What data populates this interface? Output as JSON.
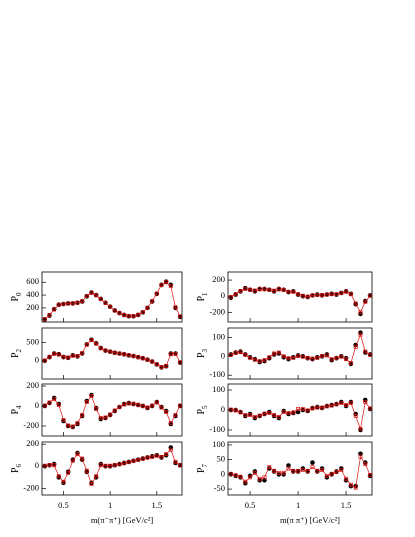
{
  "chart_data": [
    {
      "type": "scatter",
      "ylabel": "P",
      "ylabel_sub": "0",
      "x": [
        0.3,
        0.35,
        0.4,
        0.45,
        0.5,
        0.55,
        0.6,
        0.65,
        0.7,
        0.75,
        0.8,
        0.85,
        0.9,
        0.95,
        1.0,
        1.05,
        1.1,
        1.15,
        1.2,
        1.25,
        1.3,
        1.35,
        1.4,
        1.45,
        1.5,
        1.55,
        1.6,
        1.65,
        1.7,
        1.75
      ],
      "xlim": [
        0.27,
        1.77
      ],
      "xticks": [
        0.5,
        1,
        1.5
      ],
      "ylim": [
        -20,
        760
      ],
      "yticks": [
        200,
        400,
        600
      ],
      "series": [
        {
          "marker": "circle",
          "color": "#000000",
          "values": [
            20,
            80,
            180,
            250,
            260,
            270,
            270,
            280,
            300,
            380,
            440,
            400,
            340,
            280,
            220,
            160,
            120,
            90,
            70,
            70,
            90,
            130,
            200,
            300,
            420,
            560,
            610,
            560,
            200,
            60
          ]
        },
        {
          "marker": "square",
          "color": "#dd1111",
          "values": [
            25,
            90,
            175,
            245,
            262,
            268,
            272,
            282,
            305,
            385,
            435,
            398,
            338,
            278,
            218,
            158,
            118,
            88,
            72,
            72,
            92,
            132,
            202,
            305,
            425,
            555,
            600,
            540,
            210,
            70
          ]
        }
      ]
    },
    {
      "type": "scatter",
      "ylabel": "P",
      "ylabel_sub": "1",
      "x": [
        0.3,
        0.35,
        0.4,
        0.45,
        0.5,
        0.55,
        0.6,
        0.65,
        0.7,
        0.75,
        0.8,
        0.85,
        0.9,
        0.95,
        1.0,
        1.05,
        1.1,
        1.15,
        1.2,
        1.25,
        1.3,
        1.35,
        1.4,
        1.45,
        1.5,
        1.55,
        1.6,
        1.65,
        1.7,
        1.75
      ],
      "xlim": [
        0.27,
        1.77
      ],
      "xticks": [
        0.5,
        1,
        1.5
      ],
      "ylim": [
        -320,
        300
      ],
      "yticks": [
        -200,
        0,
        200
      ],
      "series": [
        {
          "marker": "circle",
          "color": "#000000",
          "values": [
            -20,
            20,
            60,
            100,
            80,
            60,
            90,
            90,
            80,
            60,
            90,
            80,
            50,
            60,
            20,
            0,
            -10,
            10,
            20,
            10,
            20,
            30,
            20,
            40,
            60,
            30,
            -100,
            -220,
            -60,
            10
          ]
        },
        {
          "marker": "square",
          "color": "#dd1111",
          "values": [
            -10,
            25,
            65,
            90,
            80,
            70,
            85,
            85,
            78,
            68,
            85,
            78,
            55,
            55,
            25,
            5,
            -5,
            10,
            15,
            15,
            20,
            25,
            25,
            40,
            55,
            25,
            -90,
            -200,
            -70,
            5
          ]
        }
      ]
    },
    {
      "type": "scatter",
      "ylabel": "P",
      "ylabel_sub": "2",
      "x": [
        0.3,
        0.35,
        0.4,
        0.45,
        0.5,
        0.55,
        0.6,
        0.65,
        0.7,
        0.75,
        0.8,
        0.85,
        0.9,
        0.95,
        1.0,
        1.05,
        1.1,
        1.15,
        1.2,
        1.25,
        1.3,
        1.35,
        1.4,
        1.45,
        1.5,
        1.55,
        1.6,
        1.65,
        1.7,
        1.75
      ],
      "xlim": [
        0.27,
        1.77
      ],
      "xticks": [
        0.5,
        1,
        1.5
      ],
      "ylim": [
        -500,
        900
      ],
      "yticks": [
        0,
        500
      ],
      "series": [
        {
          "marker": "circle",
          "color": "#000000",
          "values": [
            0,
            100,
            200,
            180,
            100,
            80,
            150,
            120,
            200,
            450,
            580,
            480,
            350,
            280,
            250,
            220,
            200,
            180,
            150,
            130,
            100,
            70,
            30,
            -20,
            -100,
            -180,
            -150,
            200,
            200,
            -50
          ]
        },
        {
          "marker": "square",
          "color": "#dd1111",
          "values": [
            10,
            110,
            190,
            170,
            110,
            90,
            140,
            130,
            210,
            440,
            570,
            470,
            345,
            285,
            250,
            220,
            198,
            178,
            152,
            128,
            98,
            68,
            28,
            -25,
            -95,
            -170,
            -140,
            180,
            190,
            -40
          ]
        }
      ]
    },
    {
      "type": "scatter",
      "ylabel": "P",
      "ylabel_sub": "3",
      "x": [
        0.3,
        0.35,
        0.4,
        0.45,
        0.5,
        0.55,
        0.6,
        0.65,
        0.7,
        0.75,
        0.8,
        0.85,
        0.9,
        0.95,
        1.0,
        1.05,
        1.1,
        1.15,
        1.2,
        1.25,
        1.3,
        1.35,
        1.4,
        1.45,
        1.5,
        1.55,
        1.6,
        1.65,
        1.7,
        1.75
      ],
      "xlim": [
        0.27,
        1.77
      ],
      "xticks": [
        0.5,
        1,
        1.5
      ],
      "ylim": [
        -120,
        150
      ],
      "yticks": [
        -100,
        0,
        100
      ],
      "series": [
        {
          "marker": "circle",
          "color": "#000000",
          "values": [
            10,
            20,
            25,
            10,
            -5,
            -15,
            -30,
            -25,
            -10,
            10,
            15,
            -5,
            -15,
            -5,
            5,
            0,
            -10,
            -15,
            -5,
            0,
            10,
            -20,
            -10,
            0,
            -10,
            -40,
            60,
            125,
            20,
            10
          ]
        },
        {
          "marker": "square",
          "color": "#dd1111",
          "values": [
            8,
            18,
            22,
            8,
            -8,
            -18,
            -25,
            -20,
            -5,
            15,
            20,
            0,
            -10,
            -8,
            2,
            -2,
            -8,
            -12,
            -8,
            2,
            5,
            -15,
            -8,
            -2,
            -15,
            -35,
            50,
            115,
            25,
            8
          ]
        }
      ]
    },
    {
      "type": "scatter",
      "ylabel": "P",
      "ylabel_sub": "4",
      "x": [
        0.3,
        0.35,
        0.4,
        0.45,
        0.5,
        0.55,
        0.6,
        0.65,
        0.7,
        0.75,
        0.8,
        0.85,
        0.9,
        0.95,
        1.0,
        1.05,
        1.1,
        1.15,
        1.2,
        1.25,
        1.3,
        1.35,
        1.4,
        1.45,
        1.5,
        1.55,
        1.6,
        1.65,
        1.7,
        1.75
      ],
      "xlim": [
        0.27,
        1.77
      ],
      "xticks": [
        0.5,
        1,
        1.5
      ],
      "ylim": [
        -300,
        220
      ],
      "yticks": [
        -200,
        0,
        200
      ],
      "series": [
        {
          "marker": "circle",
          "color": "#000000",
          "values": [
            0,
            30,
            80,
            20,
            -150,
            -200,
            -210,
            -180,
            -100,
            50,
            110,
            -20,
            -130,
            -120,
            -90,
            -50,
            -10,
            20,
            30,
            20,
            10,
            0,
            -20,
            0,
            40,
            -10,
            -50,
            -180,
            -100,
            0
          ]
        },
        {
          "marker": "square",
          "color": "#dd1111",
          "values": [
            5,
            35,
            70,
            10,
            -140,
            -195,
            -205,
            -170,
            -90,
            40,
            100,
            -30,
            -120,
            -115,
            -85,
            -45,
            -10,
            15,
            25,
            22,
            12,
            2,
            -15,
            5,
            35,
            -15,
            -60,
            -170,
            -90,
            5
          ]
        }
      ]
    },
    {
      "type": "scatter",
      "ylabel": "P",
      "ylabel_sub": "5",
      "x": [
        0.3,
        0.35,
        0.4,
        0.45,
        0.5,
        0.55,
        0.6,
        0.65,
        0.7,
        0.75,
        0.8,
        0.85,
        0.9,
        0.95,
        1.0,
        1.05,
        1.1,
        1.15,
        1.2,
        1.25,
        1.3,
        1.35,
        1.4,
        1.45,
        1.5,
        1.55,
        1.6,
        1.65,
        1.7,
        1.75
      ],
      "xlim": [
        0.27,
        1.77
      ],
      "xticks": [
        0.5,
        1,
        1.5
      ],
      "ylim": [
        -130,
        130
      ],
      "yticks": [
        -100,
        0,
        100
      ],
      "series": [
        {
          "marker": "circle",
          "color": "#000000",
          "values": [
            0,
            0,
            -10,
            -30,
            -20,
            -40,
            -30,
            -20,
            -10,
            -30,
            -40,
            -5,
            -20,
            -15,
            -10,
            0,
            -5,
            10,
            15,
            10,
            20,
            25,
            30,
            40,
            20,
            40,
            -20,
            -100,
            50,
            5
          ]
        },
        {
          "marker": "square",
          "color": "#dd1111",
          "values": [
            2,
            -2,
            -12,
            -25,
            -25,
            -35,
            -28,
            -18,
            -15,
            -25,
            -35,
            -10,
            -15,
            -12,
            5,
            5,
            -2,
            8,
            12,
            12,
            18,
            22,
            28,
            35,
            25,
            35,
            -30,
            -95,
            40,
            8
          ]
        }
      ]
    },
    {
      "type": "scatter",
      "ylabel": "P",
      "ylabel_sub": "6",
      "x": [
        0.3,
        0.35,
        0.4,
        0.45,
        0.5,
        0.55,
        0.6,
        0.65,
        0.7,
        0.75,
        0.8,
        0.85,
        0.9,
        0.95,
        1.0,
        1.05,
        1.1,
        1.15,
        1.2,
        1.25,
        1.3,
        1.35,
        1.4,
        1.45,
        1.5,
        1.55,
        1.6,
        1.65,
        1.7,
        1.75
      ],
      "xlim": [
        0.27,
        1.77
      ],
      "xticks": [
        0.5,
        1,
        1.5
      ],
      "ylim": [
        -260,
        220
      ],
      "yticks": [
        -200,
        0,
        200
      ],
      "series": [
        {
          "marker": "circle",
          "color": "#000000",
          "values": [
            0,
            10,
            20,
            -100,
            -150,
            -50,
            60,
            120,
            60,
            -50,
            -150,
            -100,
            20,
            0,
            0,
            10,
            20,
            30,
            40,
            50,
            60,
            70,
            80,
            90,
            100,
            80,
            100,
            170,
            30,
            10
          ]
        },
        {
          "marker": "square",
          "color": "#dd1111",
          "values": [
            5,
            12,
            10,
            -90,
            -140,
            -60,
            50,
            110,
            70,
            -40,
            -160,
            -90,
            10,
            5,
            5,
            12,
            18,
            28,
            38,
            48,
            58,
            68,
            78,
            85,
            95,
            85,
            110,
            150,
            40,
            8
          ]
        }
      ]
    },
    {
      "type": "scatter",
      "ylabel": "P",
      "ylabel_sub": "7",
      "x": [
        0.3,
        0.35,
        0.4,
        0.45,
        0.5,
        0.55,
        0.6,
        0.65,
        0.7,
        0.75,
        0.8,
        0.85,
        0.9,
        0.95,
        1.0,
        1.05,
        1.1,
        1.15,
        1.2,
        1.25,
        1.3,
        1.35,
        1.4,
        1.45,
        1.5,
        1.55,
        1.6,
        1.65,
        1.7,
        1.75
      ],
      "xlim": [
        0.27,
        1.77
      ],
      "xticks": [
        0.5,
        1,
        1.5
      ],
      "ylim": [
        -70,
        110
      ],
      "yticks": [
        -50,
        0,
        50,
        100
      ],
      "series": [
        {
          "marker": "circle",
          "color": "#000000",
          "values": [
            0,
            -5,
            -10,
            -30,
            -5,
            10,
            -20,
            -20,
            20,
            10,
            0,
            0,
            30,
            10,
            10,
            20,
            10,
            40,
            10,
            20,
            -10,
            0,
            10,
            20,
            -20,
            -40,
            -40,
            70,
            40,
            -5
          ]
        },
        {
          "marker": "square",
          "color": "#dd1111",
          "values": [
            2,
            -3,
            -8,
            -25,
            -10,
            5,
            -15,
            -10,
            25,
            12,
            5,
            5,
            20,
            12,
            12,
            15,
            12,
            25,
            12,
            15,
            -5,
            2,
            8,
            15,
            -15,
            -35,
            -45,
            60,
            35,
            -2
          ]
        }
      ]
    },
    {
      "type": "scatter",
      "xlabel": "m(π⁻π⁺) [GeV/c²]"
    },
    {
      "type": "scatter",
      "xlabel": "m(π π⁺) [GeV/c²]"
    }
  ]
}
